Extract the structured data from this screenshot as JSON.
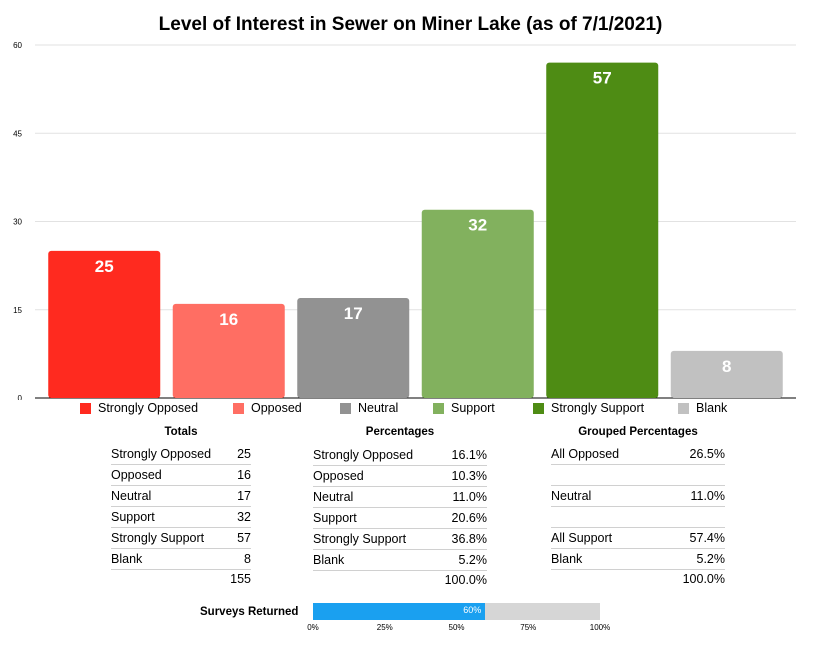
{
  "chart_data": {
    "type": "bar",
    "title": "Level of Interest in Sewer on Miner Lake (as of 7/1/2021)",
    "categories": [
      "Strongly Opposed",
      "Opposed",
      "Neutral",
      "Support",
      "Strongly Support",
      "Blank"
    ],
    "values": [
      25,
      16,
      17,
      32,
      57,
      8
    ],
    "colors": [
      "#ff2a1f",
      "#ff6e63",
      "#929292",
      "#82b15e",
      "#4e8c14",
      "#c1c1c1"
    ],
    "ylim": [
      0,
      60
    ],
    "yticks": [
      0,
      15,
      30,
      45,
      60
    ],
    "grid": true,
    "legend": "bottom"
  },
  "totals": {
    "title": "Totals",
    "rows": [
      {
        "label": "Strongly Opposed",
        "value": "25"
      },
      {
        "label": "Opposed",
        "value": "16"
      },
      {
        "label": "Neutral",
        "value": "17"
      },
      {
        "label": "Support",
        "value": "32"
      },
      {
        "label": "Strongly Support",
        "value": "57"
      },
      {
        "label": "Blank",
        "value": "8"
      }
    ],
    "total": "155"
  },
  "percentages": {
    "title": "Percentages",
    "rows": [
      {
        "label": "Strongly Opposed",
        "value": "16.1%"
      },
      {
        "label": "Opposed",
        "value": "10.3%"
      },
      {
        "label": "Neutral",
        "value": "11.0%"
      },
      {
        "label": "Support",
        "value": "20.6%"
      },
      {
        "label": "Strongly Support",
        "value": "36.8%"
      },
      {
        "label": "Blank",
        "value": "5.2%"
      }
    ],
    "total": "100.0%"
  },
  "grouped": {
    "title": "Grouped Percentages",
    "rows": [
      {
        "label": "All Opposed",
        "value": "26.5%"
      },
      {
        "label": "",
        "value": ""
      },
      {
        "label": "Neutral",
        "value": "11.0%"
      },
      {
        "label": "",
        "value": ""
      },
      {
        "label": "All Support",
        "value": "57.4%"
      },
      {
        "label": "Blank",
        "value": "5.2%"
      }
    ],
    "total": "100.0%"
  },
  "surveys": {
    "label": "Surveys Returned",
    "percent": 60,
    "percent_label": "60%",
    "ticks": [
      "0%",
      "25%",
      "50%",
      "75%",
      "100%"
    ]
  }
}
